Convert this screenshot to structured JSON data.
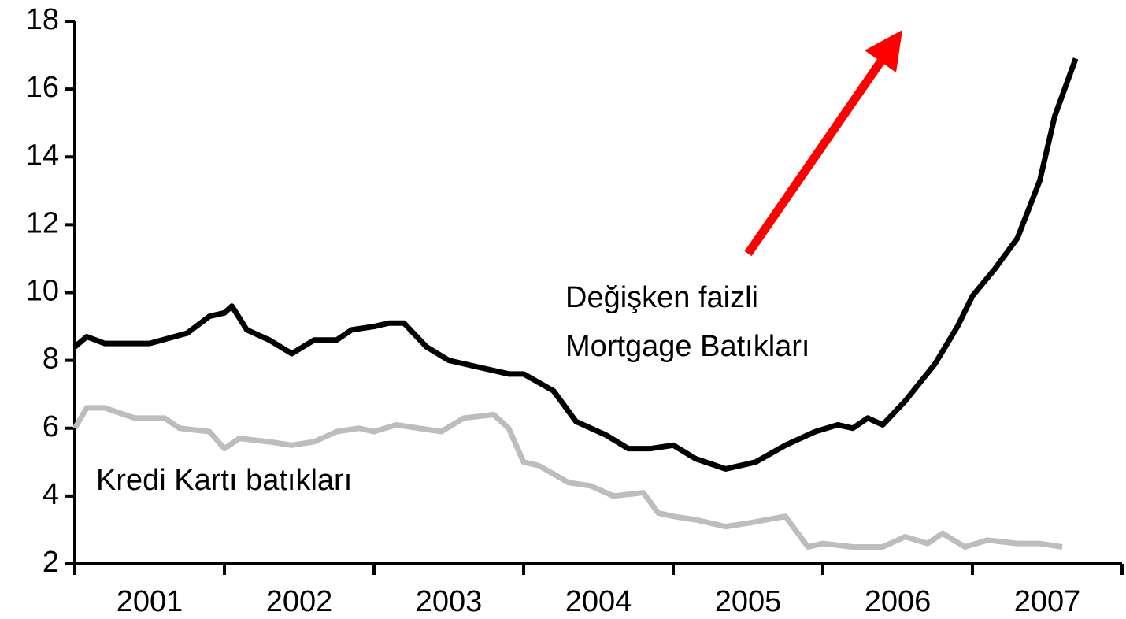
{
  "chart_data": {
    "type": "line",
    "annotations": [
      {
        "lines": [
          "Değişken faizli",
          "Mortgage Batıkları"
        ]
      },
      {
        "lines": [
          "Kredi Kartı batıkları"
        ]
      }
    ],
    "series": [
      {
        "color": "#000000",
        "x": [
          2001.0,
          2001.08,
          2001.2,
          2001.5,
          2001.75,
          2001.9,
          2002.0,
          2002.05,
          2002.15,
          2002.3,
          2002.45,
          2002.6,
          2002.75,
          2002.85,
          2003.0,
          2003.1,
          2003.2,
          2003.35,
          2003.5,
          2003.7,
          2003.9,
          2004.0,
          2004.2,
          2004.35,
          2004.55,
          2004.7,
          2004.85,
          2005.0,
          2005.15,
          2005.35,
          2005.55,
          2005.75,
          2005.95,
          2006.1,
          2006.2,
          2006.3,
          2006.4,
          2006.55,
          2006.75,
          2006.9,
          2007.0,
          2007.15,
          2007.3,
          2007.45,
          2007.55,
          2007.69
        ],
        "values": [
          8.4,
          8.7,
          8.5,
          8.5,
          8.8,
          9.3,
          9.4,
          9.6,
          8.9,
          8.6,
          8.2,
          8.6,
          8.6,
          8.9,
          9.0,
          9.1,
          9.1,
          8.4,
          8.0,
          7.8,
          7.6,
          7.6,
          7.1,
          6.2,
          5.8,
          5.4,
          5.4,
          5.5,
          5.1,
          4.8,
          5.0,
          5.5,
          5.9,
          6.1,
          6.0,
          6.3,
          6.1,
          6.8,
          7.9,
          9.0,
          9.9,
          10.7,
          11.6,
          13.3,
          15.2,
          16.9
        ]
      },
      {
        "color": "#bdbdbd",
        "x": [
          2001.0,
          2001.08,
          2001.2,
          2001.4,
          2001.6,
          2001.7,
          2001.9,
          2002.0,
          2002.1,
          2002.3,
          2002.45,
          2002.6,
          2002.75,
          2002.9,
          2003.0,
          2003.15,
          2003.3,
          2003.45,
          2003.6,
          2003.8,
          2003.9,
          2004.0,
          2004.1,
          2004.3,
          2004.45,
          2004.6,
          2004.8,
          2004.9,
          2005.0,
          2005.15,
          2005.35,
          2005.5,
          2005.75,
          2005.9,
          2006.0,
          2006.2,
          2006.4,
          2006.55,
          2006.7,
          2006.8,
          2006.95,
          2007.1,
          2007.3,
          2007.45,
          2007.6
        ],
        "values": [
          6.0,
          6.6,
          6.6,
          6.3,
          6.3,
          6.0,
          5.9,
          5.4,
          5.7,
          5.6,
          5.5,
          5.6,
          5.9,
          6.0,
          5.9,
          6.1,
          6.0,
          5.9,
          6.3,
          6.4,
          6.0,
          5.0,
          4.9,
          4.4,
          4.3,
          4.0,
          4.1,
          3.5,
          3.4,
          3.3,
          3.1,
          3.2,
          3.4,
          2.5,
          2.6,
          2.5,
          2.5,
          2.8,
          2.6,
          2.9,
          2.5,
          2.7,
          2.6,
          2.6,
          2.5
        ]
      }
    ],
    "xlim": [
      2001,
      2008
    ],
    "xtick_marks": [
      2001,
      2002,
      2003,
      2004,
      2005,
      2006,
      2007,
      2008
    ],
    "xticks": [
      {
        "value": 2001.5,
        "label": "2001"
      },
      {
        "value": 2002.5,
        "label": "2002"
      },
      {
        "value": 2003.5,
        "label": "2003"
      },
      {
        "value": 2004.5,
        "label": "2004"
      },
      {
        "value": 2005.5,
        "label": "2005"
      },
      {
        "value": 2006.5,
        "label": "2006"
      },
      {
        "value": 2007.5,
        "label": "2007"
      }
    ],
    "ylim": [
      2,
      18
    ],
    "yticks": [
      2,
      4,
      6,
      8,
      10,
      12,
      14,
      16,
      18
    ]
  }
}
